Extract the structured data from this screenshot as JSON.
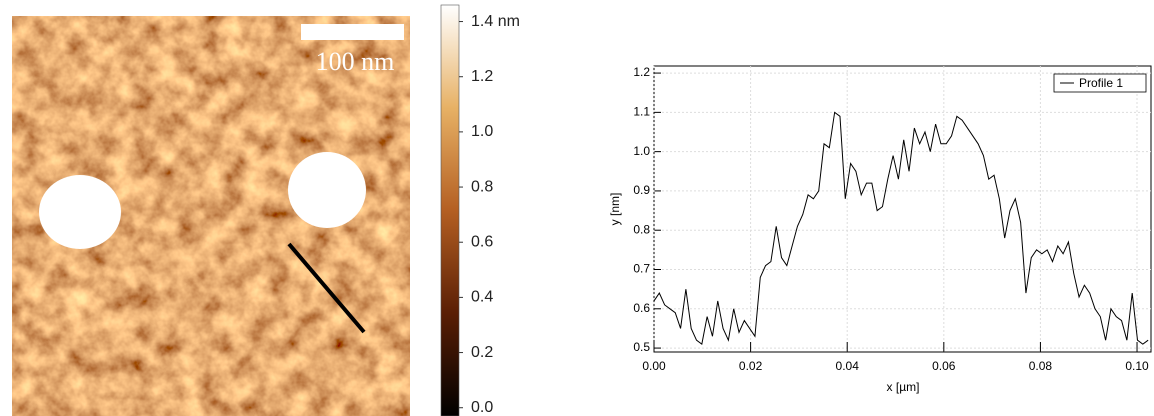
{
  "chart_data": [
    {
      "type": "image",
      "scale_bar_label": "100 nm",
      "ylim": [
        -0.03,
        1.46
      ],
      "yticks": [
        {
          "value": 0,
          "label": "0.0"
        },
        0.2,
        0.4,
        0.6,
        0.8,
        {
          "value": 1,
          "label": "1.0"
        },
        1.2,
        {
          "value": 1.4,
          "label": "1.4 nm"
        }
      ]
    },
    {
      "type": "line",
      "xlabel": "x [µm]",
      "ylabel": "y [nm]",
      "grid": true,
      "legend": "top-right",
      "xlim": [
        0,
        0.1031
      ],
      "ylim": [
        0.49,
        1.218
      ],
      "xticks": [
        {
          "value": 0,
          "label": "0.00"
        },
        {
          "value": 0.02,
          "label": "0.02"
        },
        {
          "value": 0.04,
          "label": "0.04"
        },
        {
          "value": 0.06,
          "label": "0.06"
        },
        {
          "value": 0.08,
          "label": "0.08"
        },
        {
          "value": 0.1,
          "label": "0.10"
        }
      ],
      "yticks": [
        0.5,
        0.6,
        0.7,
        0.8,
        0.9,
        {
          "value": 1,
          "label": "1.0"
        },
        1.1,
        1.2
      ],
      "x": [
        0,
        0.0011,
        0.0022,
        0.0033,
        0.0044,
        0.0055,
        0.0066,
        0.0077,
        0.0088,
        0.0099,
        0.011,
        0.0121,
        0.0132,
        0.0143,
        0.0154,
        0.0165,
        0.0176,
        0.0187,
        0.0198,
        0.0209,
        0.022,
        0.0231,
        0.0242,
        0.0253,
        0.0264,
        0.0275,
        0.0286,
        0.0297,
        0.0308,
        0.0319,
        0.033,
        0.0341,
        0.0352,
        0.0363,
        0.0374,
        0.0385,
        0.0396,
        0.0407,
        0.0418,
        0.0429,
        0.044,
        0.0451,
        0.0462,
        0.0473,
        0.0484,
        0.0495,
        0.0506,
        0.0517,
        0.0528,
        0.0539,
        0.055,
        0.0561,
        0.0572,
        0.0583,
        0.0594,
        0.0605,
        0.0616,
        0.0627,
        0.0638,
        0.0649,
        0.066,
        0.0671,
        0.0682,
        0.0693,
        0.0704,
        0.0715,
        0.0726,
        0.0737,
        0.0748,
        0.0759,
        0.077,
        0.0781,
        0.0792,
        0.0803,
        0.0814,
        0.0825,
        0.0836,
        0.0847,
        0.0858,
        0.0869,
        0.088,
        0.0891,
        0.0902,
        0.0913,
        0.0924,
        0.0935,
        0.0946,
        0.0957,
        0.0968,
        0.0979,
        0.099,
        0.1001,
        0.1012,
        0.1023
      ],
      "series": [
        {
          "name": "Profile 1",
          "color": "#000000",
          "values": [
            0.62,
            0.64,
            0.61,
            0.6,
            0.59,
            0.55,
            0.65,
            0.55,
            0.52,
            0.51,
            0.58,
            0.53,
            0.62,
            0.55,
            0.52,
            0.6,
            0.54,
            0.57,
            0.55,
            0.53,
            0.68,
            0.71,
            0.72,
            0.81,
            0.73,
            0.71,
            0.76,
            0.81,
            0.84,
            0.89,
            0.88,
            0.9,
            1.02,
            1.01,
            1.1,
            1.09,
            0.88,
            0.97,
            0.95,
            0.89,
            0.92,
            0.92,
            0.85,
            0.86,
            0.93,
            0.99,
            0.93,
            1.03,
            0.95,
            1.06,
            1.02,
            1.05,
            1.0,
            1.07,
            1.02,
            1.02,
            1.04,
            1.09,
            1.08,
            1.06,
            1.04,
            1.02,
            0.99,
            0.93,
            0.94,
            0.88,
            0.78,
            0.85,
            0.88,
            0.82,
            0.64,
            0.73,
            0.75,
            0.74,
            0.75,
            0.72,
            0.76,
            0.74,
            0.77,
            0.69,
            0.63,
            0.66,
            0.64,
            0.6,
            0.58,
            0.52,
            0.6,
            0.58,
            0.57,
            0.52,
            0.64,
            0.52,
            0.51,
            0.52
          ]
        }
      ]
    }
  ]
}
